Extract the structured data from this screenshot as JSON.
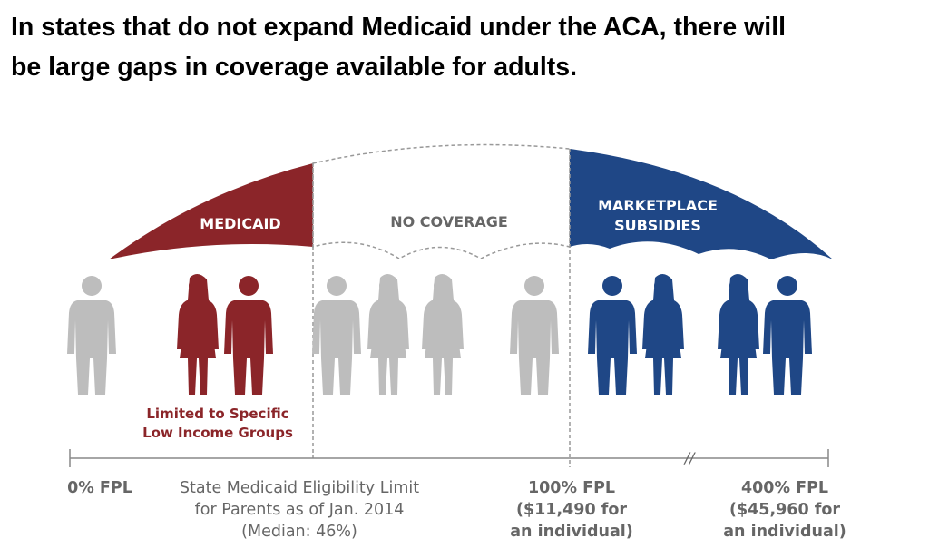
{
  "title": {
    "line1": "In states that do not expand Medicaid under the ACA, there will",
    "line2": "be large gaps in coverage available for adults."
  },
  "colors": {
    "medicaid": "#8b2529",
    "marketplace": "#1f4786",
    "no_coverage": "#bdbdbd",
    "text_gray": "#666666"
  },
  "bands": {
    "medicaid": "MEDICAID",
    "no_coverage": "NO COVERAGE",
    "marketplace": {
      "line1": "MARKETPLACE",
      "line2": "SUBSIDIES"
    }
  },
  "medicaid_note": {
    "line1": "Limited to Specific",
    "line2": "Low Income Groups"
  },
  "axis_labels": {
    "fpl0": "0% FPL",
    "state_limit": {
      "line1": "State Medicaid Eligibility Limit",
      "line2": "for Parents as of Jan. 2014",
      "line3": "(Median: 46%)"
    },
    "fpl100": {
      "line1": "100% FPL",
      "line2": "($11,490 for",
      "line3": "an individual)"
    },
    "fpl400": {
      "line1": "400% FPL",
      "line2": "($45,960 for",
      "line3": "an individual)"
    },
    "break_mark": "//"
  },
  "people": {
    "no_coverage_left": "gray",
    "medicaid": [
      "red",
      "red"
    ],
    "no_coverage_middle": [
      "gray",
      "gray",
      "gray",
      "gray"
    ],
    "marketplace": [
      "blue",
      "blue",
      "blue",
      "blue"
    ]
  }
}
